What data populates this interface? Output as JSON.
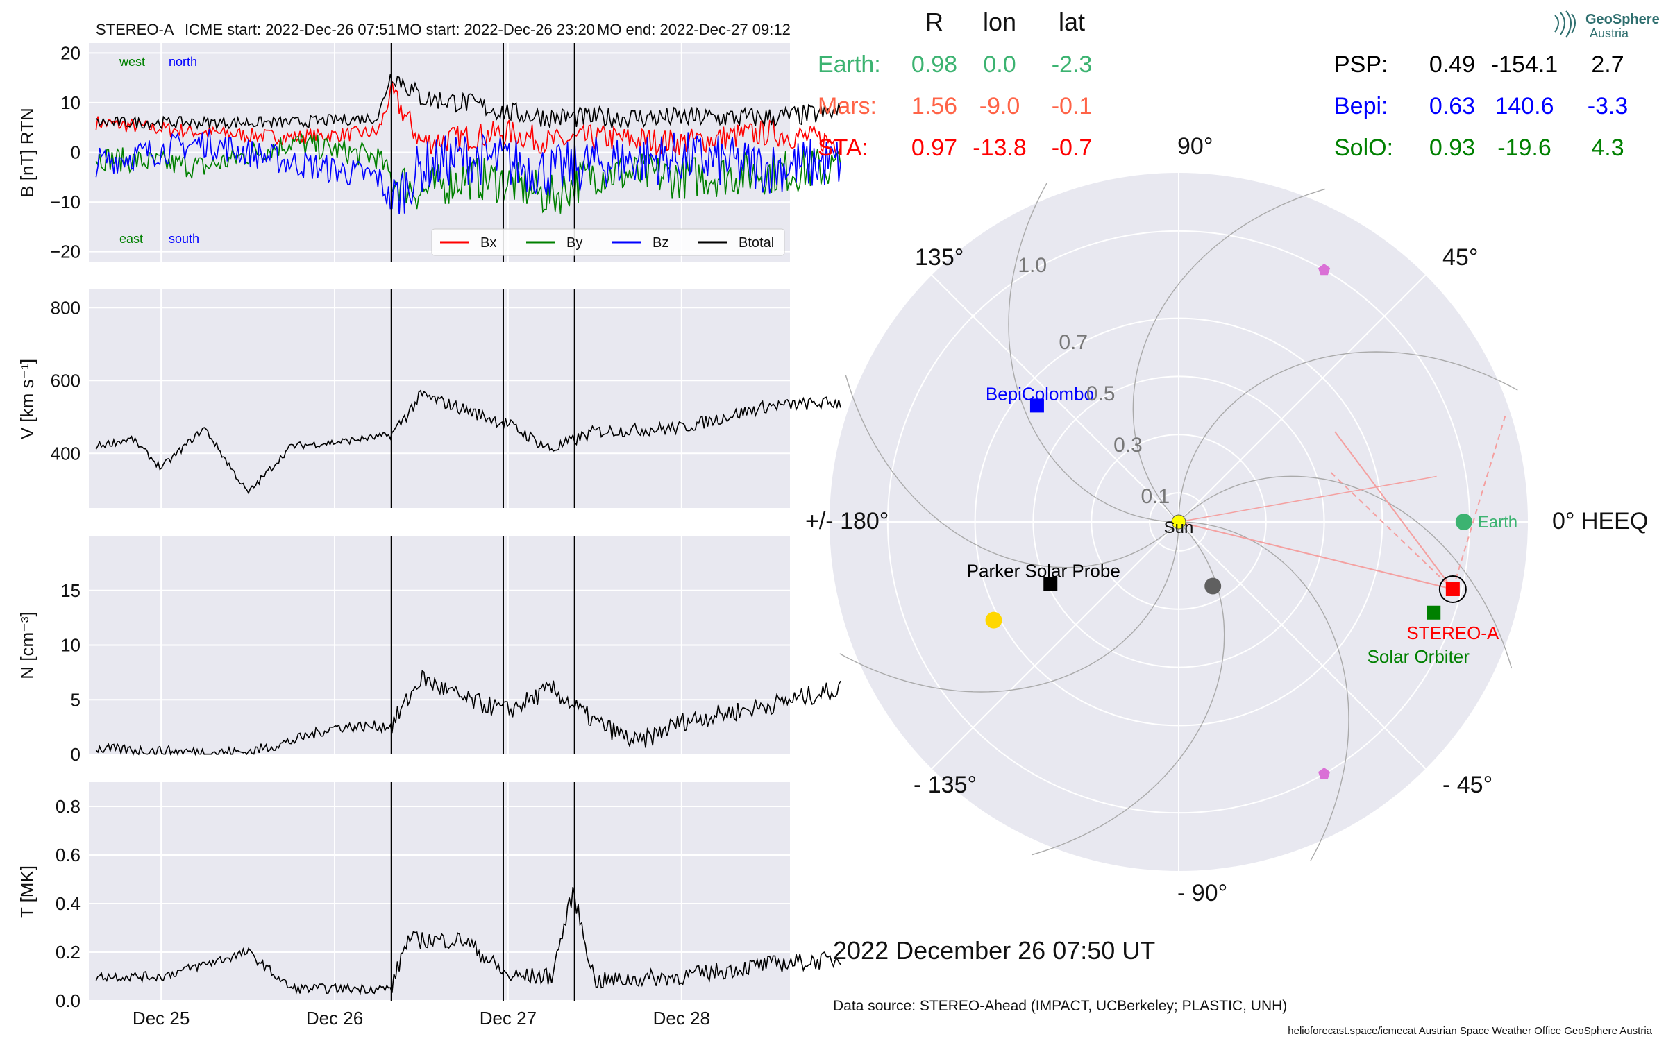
{
  "header": {
    "spacecraft": "STEREO-A",
    "icme_start": "ICME start: 2022-Dec-26 07:51",
    "mo_start": "MO start: 2022-Dec-26 23:20",
    "mo_end": "MO end: 2022-Dec-27 09:12"
  },
  "logo": {
    "line1": "GeoSphere",
    "line2": "Austria"
  },
  "positions": {
    "headers": [
      "R",
      "lon",
      "lat"
    ],
    "left": [
      {
        "name": "Earth:",
        "r": "0.98",
        "lon": "0.0",
        "lat": "-2.3",
        "color": "#3cb371"
      },
      {
        "name": "Mars:",
        "r": "1.56",
        "lon": "-9.0",
        "lat": "-0.1",
        "color": "#ff6347"
      },
      {
        "name": "STA:",
        "r": "0.97",
        "lon": "-13.8",
        "lat": "-0.7",
        "color": "#ff0000"
      }
    ],
    "right": [
      {
        "name": "PSP:",
        "r": "0.49",
        "lon": "-154.1",
        "lat": "2.7",
        "color": "#000000"
      },
      {
        "name": "Bepi:",
        "r": "0.63",
        "lon": "140.6",
        "lat": "-3.3",
        "color": "#0000ff"
      },
      {
        "name": "SolO:",
        "r": "0.93",
        "lon": "-19.6",
        "lat": "4.3",
        "color": "#008000"
      }
    ]
  },
  "footer": {
    "date": "2022 December 26  07:50 UT",
    "source": "Data source: STEREO-Ahead (IMPACT, UCBerkeley; PLASTIC, UNH)",
    "credits": "helioforecast.space/icmecat   Austrian Space Weather Office   GeoSphere Austria"
  },
  "colors": {
    "bx": "#ff0000",
    "by": "#008000",
    "bz": "#0000ff",
    "btotal": "#000000",
    "panel_bg": "#e8e8f0"
  },
  "chart_data": [
    {
      "type": "line",
      "ylabel": "B [nT] RTN",
      "ylim": [
        -22,
        22
      ],
      "yticks": [
        "20",
        "10",
        "0",
        "−10",
        "−20"
      ],
      "xticks": [
        "Dec 25",
        "Dec 26",
        "Dec 27",
        "Dec 28"
      ],
      "annotations": {
        "top_left": "west",
        "top_right": "north",
        "bottom_left": "east",
        "bottom_right": "south"
      },
      "legend_position": "bottom-right",
      "event_lines": [
        "2022-Dec-26 07:51",
        "2022-Dec-26 23:20",
        "2022-Dec-27 09:12"
      ],
      "x": [
        "Dec 24 15:00",
        "Dec 25 06:00",
        "Dec 25 18:00",
        "Dec 26 06:00",
        "Dec 26 07:51",
        "Dec 26 12:00",
        "Dec 26 18:00",
        "Dec 27 00:00",
        "Dec 27 06:00",
        "Dec 27 12:00",
        "Dec 28 00:00",
        "Dec 28 12:00",
        "Dec 28 22:00"
      ],
      "series": [
        {
          "name": "Bx",
          "values": [
            6,
            4,
            3,
            4,
            12,
            2,
            3,
            4,
            2,
            3,
            2,
            4,
            2
          ]
        },
        {
          "name": "By",
          "values": [
            -1,
            -3,
            2,
            -1,
            -5,
            -8,
            -5,
            -6,
            -9,
            -4,
            -5,
            -4,
            -3
          ]
        },
        {
          "name": "Bz",
          "values": [
            -2,
            2,
            -2,
            -5,
            -10,
            -3,
            -1,
            -2,
            -4,
            -2,
            -1,
            -3,
            -2
          ]
        },
        {
          "name": "Btotal",
          "values": [
            6,
            6,
            6,
            7,
            16,
            11,
            10,
            8,
            7,
            7,
            7,
            7,
            8
          ]
        }
      ]
    },
    {
      "type": "line",
      "ylabel": "V [km s⁻¹]",
      "ylim": [
        250,
        850
      ],
      "yticks": [
        "800",
        "600",
        "400"
      ],
      "xticks": [
        "Dec 25",
        "Dec 26",
        "Dec 27",
        "Dec 28"
      ],
      "x": [
        "Dec 24 15:00",
        "Dec 24 20:00",
        "Dec 25 00:00",
        "Dec 25 06:00",
        "Dec 25 12:00",
        "Dec 25 18:00",
        "Dec 26 00:00",
        "Dec 26 07:51",
        "Dec 26 12:00",
        "Dec 26 18:00",
        "Dec 27 00:00",
        "Dec 27 06:00",
        "Dec 27 12:00",
        "Dec 28 00:00",
        "Dec 28 12:00",
        "Dec 28 22:00"
      ],
      "series": [
        {
          "name": "",
          "values": [
            420,
            440,
            360,
            470,
            290,
            420,
            430,
            450,
            560,
            520,
            480,
            410,
            460,
            470,
            530,
            540
          ]
        }
      ]
    },
    {
      "type": "line",
      "ylabel": "N [cm⁻³]",
      "ylim": [
        0,
        20
      ],
      "yticks": [
        "15",
        "10",
        "5",
        "0"
      ],
      "xticks": [
        "Dec 25",
        "Dec 26",
        "Dec 27",
        "Dec 28"
      ],
      "x": [
        "Dec 24 15:00",
        "Dec 25 06:00",
        "Dec 25 12:00",
        "Dec 25 18:00",
        "Dec 26 00:00",
        "Dec 26 07:51",
        "Dec 26 12:00",
        "Dec 26 18:00",
        "Dec 27 00:00",
        "Dec 27 06:00",
        "Dec 27 12:00",
        "Dec 27 18:00",
        "Dec 28 00:00",
        "Dec 28 12:00",
        "Dec 28 22:00"
      ],
      "series": [
        {
          "name": "",
          "values": [
            0.5,
            0.2,
            0.2,
            1.2,
            2.5,
            2.6,
            7,
            5,
            4,
            6,
            3,
            1,
            3,
            4.5,
            6
          ]
        }
      ]
    },
    {
      "type": "line",
      "ylabel": "T [MK]",
      "ylim": [
        0,
        0.9
      ],
      "yticks": [
        "0.8",
        "0.6",
        "0.4",
        "0.2",
        "0.0"
      ],
      "xticks": [
        "Dec 25",
        "Dec 26",
        "Dec 27",
        "Dec 28"
      ],
      "x": [
        "Dec 24 15:00",
        "Dec 25 00:00",
        "Dec 25 12:00",
        "Dec 25 18:00",
        "Dec 26 00:00",
        "Dec 26 07:51",
        "Dec 26 10:00",
        "Dec 26 18:00",
        "Dec 27 00:00",
        "Dec 27 06:00",
        "Dec 27 09:00",
        "Dec 27 12:00",
        "Dec 28 00:00",
        "Dec 28 12:00",
        "Dec 28 22:00"
      ],
      "series": [
        {
          "name": "",
          "values": [
            0.1,
            0.1,
            0.2,
            0.05,
            0.05,
            0.05,
            0.25,
            0.25,
            0.1,
            0.1,
            0.45,
            0.08,
            0.1,
            0.15,
            0.17
          ]
        }
      ]
    },
    {
      "type": "scatter",
      "subtype": "polar",
      "rticks": [
        "0.1",
        "0.3",
        "0.5",
        "0.7",
        "1.0"
      ],
      "angle_labels": {
        "a0": "0° HEEQ",
        "a45": "45°",
        "a90": "90°",
        "a135": "135°",
        "a180": "+/- 180°",
        "am135": "- 135°",
        "am90": "- 90°",
        "am45": "- 45°"
      },
      "objects": [
        {
          "label": "Sun",
          "r": 0.0,
          "lon": 0.0,
          "color": "#ffff00",
          "marker": "circle"
        },
        {
          "label": "Earth",
          "r": 0.98,
          "lon": 0.0,
          "color": "#3cb371",
          "marker": "circle"
        },
        {
          "label": "STEREO-A",
          "r": 0.97,
          "lon": -13.8,
          "color": "#ff0000",
          "marker": "square"
        },
        {
          "label": "Solar Orbiter",
          "r": 0.93,
          "lon": -19.6,
          "color": "#008000",
          "marker": "square"
        },
        {
          "label": "BepiColombo",
          "r": 0.63,
          "lon": 140.6,
          "color": "#0000ff",
          "marker": "square"
        },
        {
          "label": "Parker Solar Probe",
          "r": 0.49,
          "lon": -154.1,
          "color": "#000000",
          "marker": "square"
        },
        {
          "label": "",
          "r": 0.25,
          "lon": -62.0,
          "color": "#606060",
          "marker": "circle"
        },
        {
          "label": "",
          "r": 0.72,
          "lon": -152.0,
          "color": "#ffd700",
          "marker": "circle"
        },
        {
          "label": "",
          "r": 1.0,
          "lon": 60.0,
          "color": "#da70d6",
          "marker": "pentagon"
        },
        {
          "label": "",
          "r": 1.0,
          "lon": -60.0,
          "color": "#da70d6",
          "marker": "pentagon"
        }
      ]
    }
  ]
}
